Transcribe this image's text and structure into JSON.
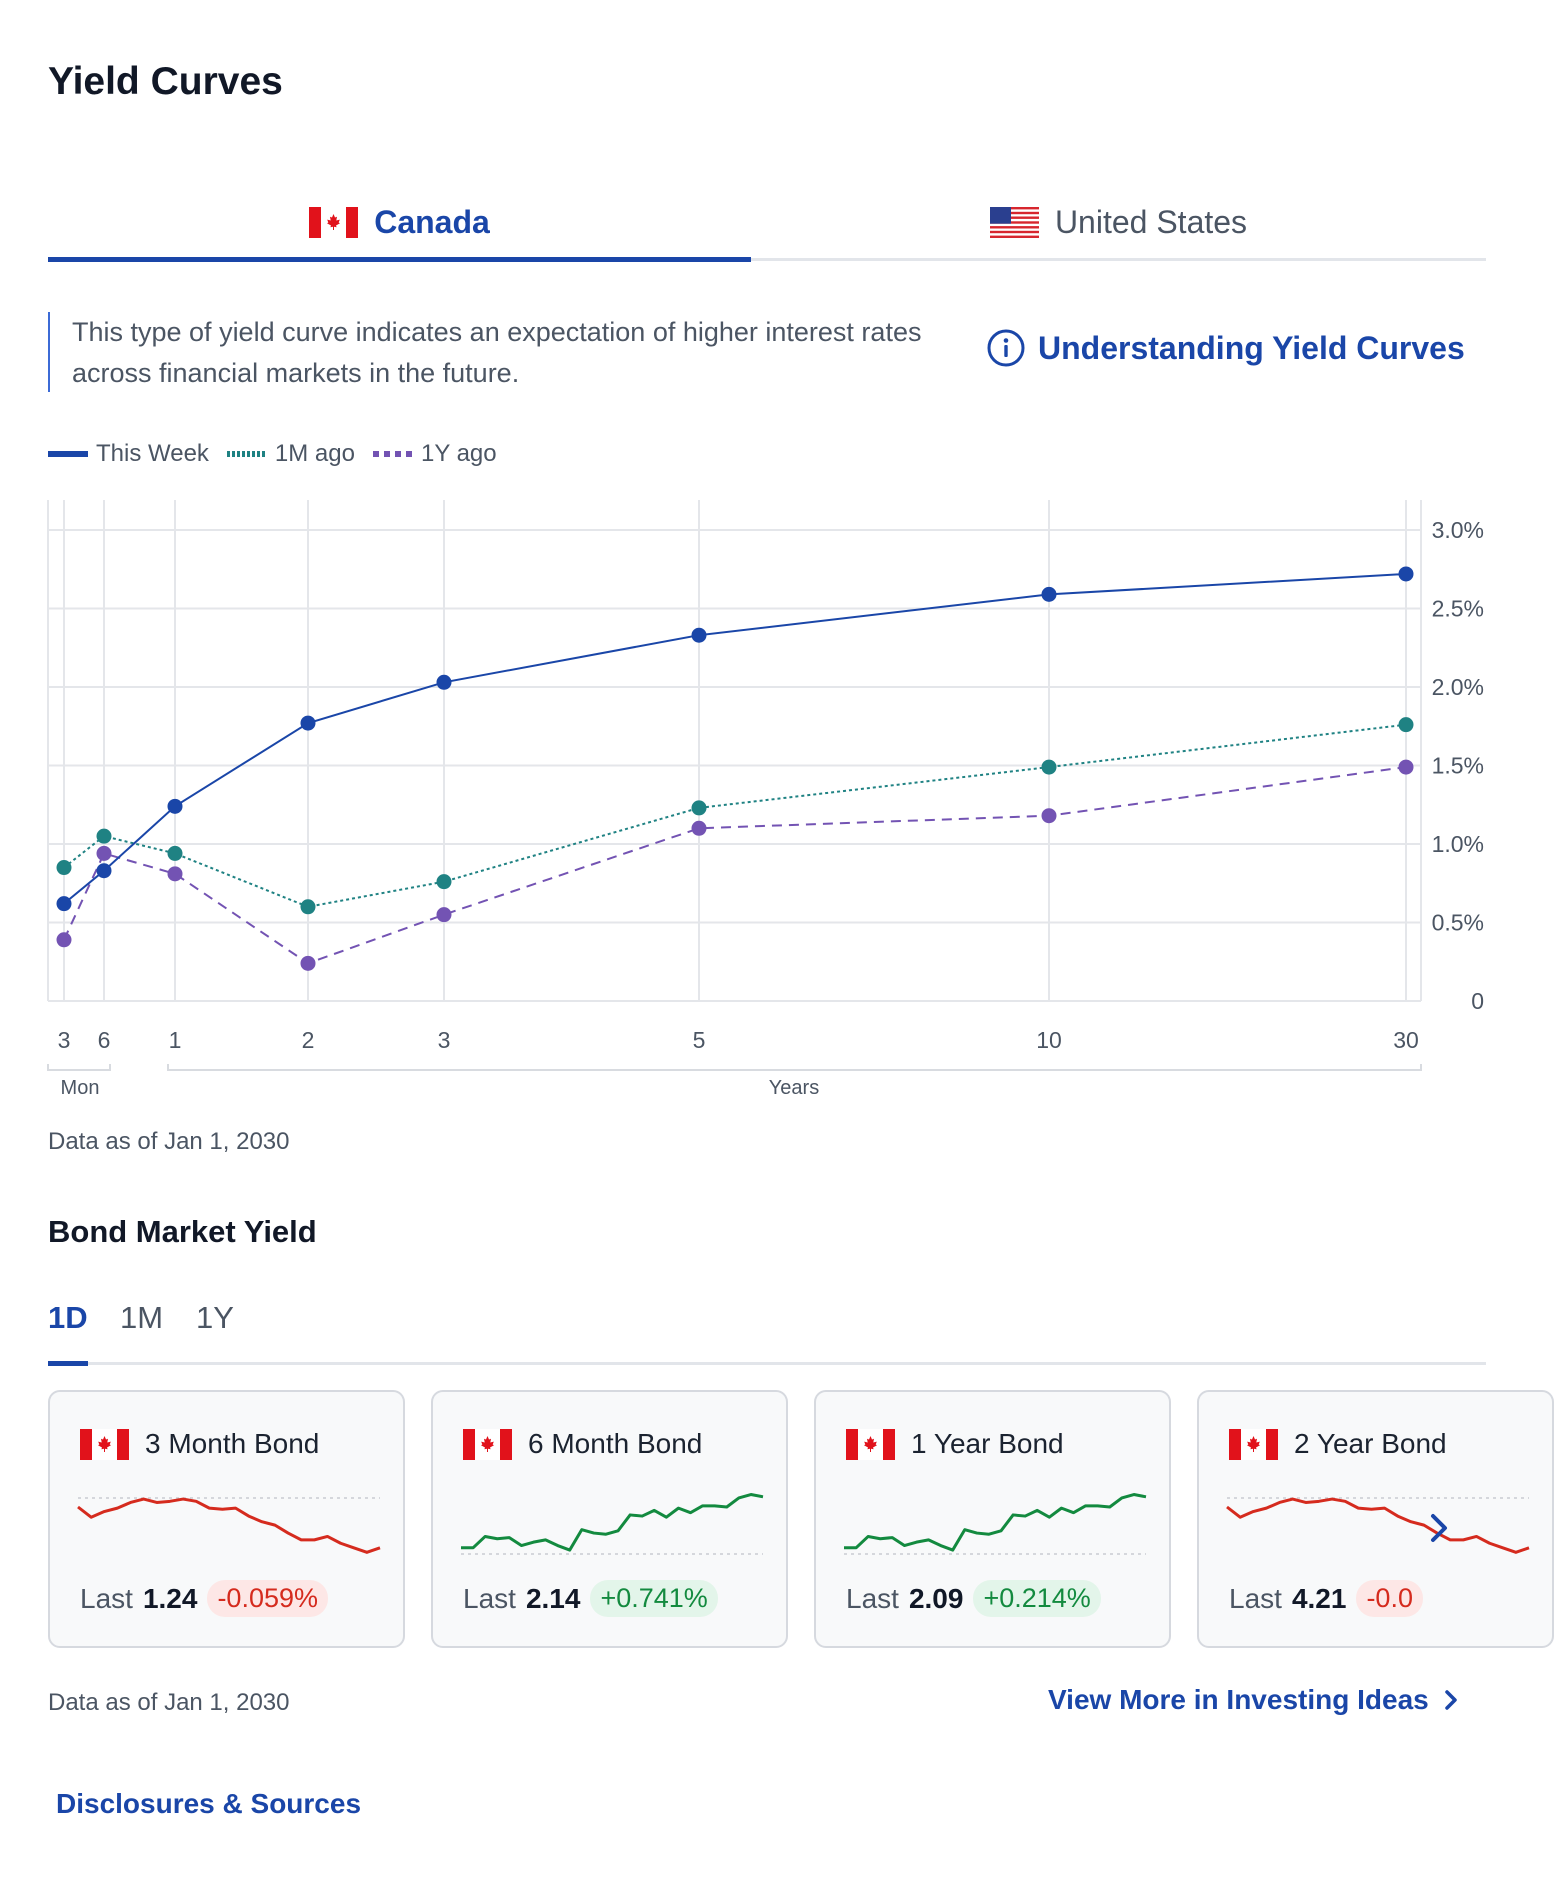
{
  "page": {
    "title": "Yield Curves"
  },
  "country_tabs": [
    {
      "label": "Canada",
      "flag": "canada-flag",
      "active": true
    },
    {
      "label": "United States",
      "flag": "us-flag",
      "active": false
    }
  ],
  "description": "This type of yield curve indicates an expectation of higher interest rates across financial markets in the future.",
  "understanding_link": {
    "label": "Understanding Yield Curves",
    "icon": "info-circle-icon"
  },
  "legend": [
    {
      "label": "This Week",
      "color": "#1a46a8",
      "style": "solid"
    },
    {
      "label": "1M ago",
      "color": "#1f8283",
      "style": "dotted"
    },
    {
      "label": "1Y ago",
      "color": "#7353b3",
      "style": "dashed"
    }
  ],
  "chart_data": {
    "type": "line",
    "x": [
      "3",
      "6",
      "1",
      "2",
      "3",
      "5",
      "10",
      "30"
    ],
    "x_groups": [
      {
        "label": "Mon",
        "ticks": [
          "3",
          "6"
        ]
      },
      {
        "label": "Years",
        "ticks": [
          "1",
          "2",
          "3",
          "5",
          "10",
          "30"
        ]
      }
    ],
    "series": [
      {
        "name": "This Week",
        "color": "#1a46a8",
        "style": "solid",
        "values": [
          0.62,
          0.83,
          1.24,
          1.77,
          2.03,
          2.33,
          2.59,
          2.72
        ]
      },
      {
        "name": "1M ago",
        "color": "#1f8283",
        "style": "dotted",
        "values": [
          0.85,
          1.05,
          0.94,
          0.6,
          0.76,
          1.23,
          1.49,
          1.76
        ]
      },
      {
        "name": "1Y ago",
        "color": "#7353b3",
        "style": "dashed",
        "values": [
          0.39,
          0.94,
          0.81,
          0.24,
          0.55,
          1.1,
          1.18,
          1.49
        ]
      }
    ],
    "y_ticks": [
      "0",
      "0.5%",
      "1.0%",
      "1.5%",
      "2.0%",
      "2.5%",
      "3.0%"
    ],
    "ylim": [
      0,
      3.0
    ],
    "grid": true,
    "y_axis_position": "right"
  },
  "chart_as_of": "Data as of Jan 1, 2030",
  "bond_section": {
    "title": "Bond Market Yield",
    "period_tabs": [
      {
        "label": "1D",
        "active": true
      },
      {
        "label": "1M",
        "active": false
      },
      {
        "label": "1Y",
        "active": false
      }
    ],
    "cards": [
      {
        "title": "3 Month Bond",
        "last_label": "Last",
        "last": "1.24",
        "change": "-0.059%",
        "direction": "down",
        "spark": [
          4.5,
          3.6,
          4.1,
          4.4,
          4.9,
          5.2,
          4.9,
          5.0,
          5.2,
          5.0,
          4.4,
          4.3,
          4.4,
          3.7,
          3.2,
          2.9,
          2.2,
          1.6,
          1.6,
          1.9,
          1.3,
          0.9,
          0.5,
          0.9
        ]
      },
      {
        "title": "6 Month Bond",
        "last_label": "Last",
        "last": "2.14",
        "change": "+0.741%",
        "direction": "up",
        "spark": [
          0.9,
          0.9,
          1.9,
          1.7,
          1.8,
          1.1,
          1.4,
          1.6,
          1.1,
          0.7,
          2.5,
          2.2,
          2.1,
          2.4,
          3.8,
          3.7,
          4.2,
          3.6,
          4.4,
          4.0,
          4.6,
          4.6,
          4.5,
          5.3,
          5.6,
          5.4
        ]
      },
      {
        "title": "1 Year Bond",
        "last_label": "Last",
        "last": "2.09",
        "change": "+0.214%",
        "direction": "up",
        "spark": [
          0.9,
          0.9,
          1.9,
          1.7,
          1.8,
          1.1,
          1.4,
          1.6,
          1.1,
          0.7,
          2.5,
          2.2,
          2.1,
          2.4,
          3.8,
          3.7,
          4.2,
          3.6,
          4.4,
          4.0,
          4.6,
          4.6,
          4.5,
          5.3,
          5.6,
          5.4
        ]
      },
      {
        "title": "2 Year Bond",
        "last_label": "Last",
        "last": "4.21",
        "change": "-0.0",
        "direction": "down",
        "spark": [
          4.5,
          3.6,
          4.1,
          4.4,
          4.9,
          5.2,
          4.9,
          5.0,
          5.2,
          5.0,
          4.4,
          4.3,
          4.4,
          3.7,
          3.2,
          2.9,
          2.2,
          1.6,
          1.6,
          1.9,
          1.3,
          0.9,
          0.5,
          0.9
        ]
      }
    ],
    "as_of": "Data as of Jan 1, 2030",
    "view_more": "View More in Investing Ideas"
  },
  "disclosures": "Disclosures & Sources",
  "colors": {
    "accent": "#1a46a8",
    "negative": "#d52b1e",
    "positive": "#138a3f"
  }
}
